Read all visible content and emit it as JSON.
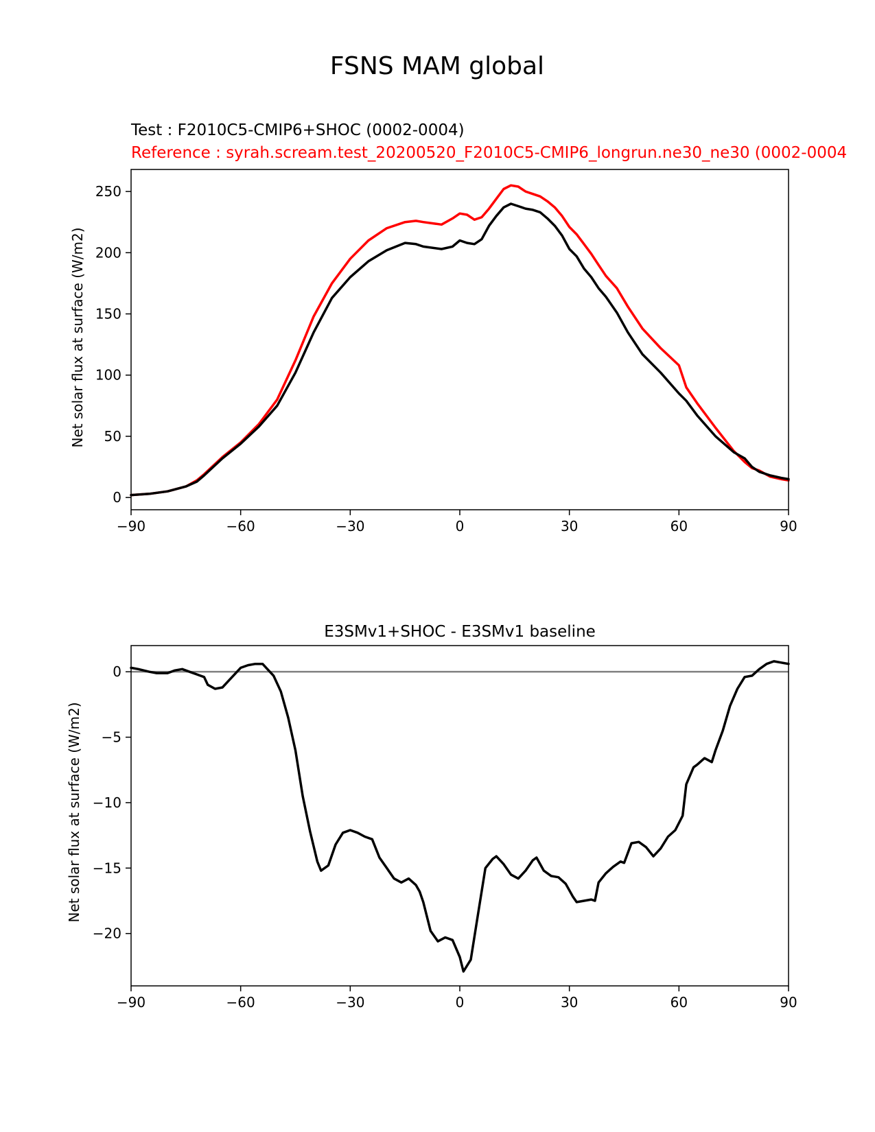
{
  "suptitle": "FSNS MAM global",
  "colors": {
    "test": "#000000",
    "reference": "#ff0000",
    "zero_line": "#808080"
  },
  "chart_data": [
    {
      "type": "line",
      "test_label": "Test : F2010C5-CMIP6+SHOC (0002-0004)",
      "reference_label": "Reference : syrah.scream.test_20200520_F2010C5-CMIP6_longrun.ne30_ne30 (0002-0004",
      "xlabel": "",
      "ylabel": "Net solar flux at surface (W/m2)",
      "xlim": [
        -90,
        90
      ],
      "ylim": [
        -10,
        268
      ],
      "xticks": [
        -90,
        -60,
        -30,
        0,
        30,
        60,
        90
      ],
      "xtick_labels": [
        "−90",
        "−60",
        "−30",
        "0",
        "30",
        "60",
        "90"
      ],
      "yticks": [
        0,
        50,
        100,
        150,
        200,
        250
      ],
      "ytick_labels": [
        "0",
        "50",
        "100",
        "150",
        "200",
        "250"
      ],
      "series": [
        {
          "name": "Reference",
          "color": "#ff0000",
          "x": [
            -90,
            -85,
            -80,
            -75,
            -72,
            -70,
            -65,
            -60,
            -55,
            -50,
            -45,
            -40,
            -35,
            -30,
            -25,
            -20,
            -15,
            -12,
            -10,
            -5,
            -2,
            0,
            2,
            4,
            6,
            8,
            10,
            12,
            14,
            16,
            18,
            20,
            22,
            24,
            26,
            28,
            30,
            32,
            34,
            36,
            38,
            40,
            43,
            46,
            50,
            55,
            60,
            62,
            65,
            70,
            75,
            78,
            80,
            82,
            85,
            88,
            90
          ],
          "values": [
            2,
            3,
            5,
            9,
            14,
            19,
            33,
            45,
            60,
            80,
            112,
            148,
            175,
            195,
            210,
            220,
            225,
            226,
            225,
            223,
            228,
            232,
            231,
            227,
            229,
            236,
            244,
            252,
            255,
            254,
            250,
            248,
            246,
            242,
            237,
            230,
            221,
            215,
            207,
            199,
            190,
            181,
            171,
            156,
            138,
            122,
            108,
            90,
            77,
            57,
            38,
            29,
            24,
            22,
            17,
            15,
            14
          ]
        },
        {
          "name": "Test",
          "color": "#000000",
          "x": [
            -90,
            -85,
            -80,
            -75,
            -72,
            -70,
            -65,
            -60,
            -55,
            -50,
            -45,
            -40,
            -35,
            -30,
            -25,
            -20,
            -15,
            -12,
            -10,
            -5,
            -2,
            0,
            2,
            4,
            6,
            8,
            10,
            12,
            14,
            16,
            18,
            20,
            22,
            24,
            26,
            28,
            30,
            32,
            34,
            36,
            38,
            40,
            43,
            46,
            50,
            55,
            60,
            62,
            65,
            70,
            75,
            78,
            80,
            82,
            85,
            88,
            90
          ],
          "values": [
            2,
            3,
            5,
            9,
            13,
            18,
            32,
            44,
            58,
            75,
            102,
            135,
            163,
            180,
            193,
            202,
            208,
            207,
            205,
            203,
            205,
            210,
            208,
            207,
            211,
            222,
            230,
            237,
            240,
            238,
            236,
            235,
            233,
            228,
            222,
            214,
            203,
            197,
            187,
            180,
            171,
            164,
            151,
            135,
            117,
            102,
            85,
            79,
            67,
            50,
            37,
            32,
            25,
            21,
            18,
            16,
            15
          ]
        }
      ]
    },
    {
      "type": "line",
      "title": "E3SMv1+SHOC - E3SMv1 baseline",
      "xlabel": "",
      "ylabel": "Net solar flux at surface (W/m2)",
      "xlim": [
        -90,
        90
      ],
      "ylim": [
        -24,
        2
      ],
      "xticks": [
        -90,
        -60,
        -30,
        0,
        30,
        60,
        90
      ],
      "xtick_labels": [
        "−90",
        "−60",
        "−30",
        "0",
        "30",
        "60",
        "90"
      ],
      "yticks": [
        0,
        -5,
        -10,
        -15,
        -20
      ],
      "ytick_labels": [
        "0",
        "−5",
        "−10",
        "−15",
        "−20"
      ],
      "reference_line": 0,
      "series": [
        {
          "name": "Difference",
          "color": "#000000",
          "x": [
            -90,
            -88,
            -85,
            -83,
            -80,
            -78,
            -76,
            -74,
            -72,
            -70,
            -69,
            -67,
            -65,
            -63,
            -60,
            -58,
            -56,
            -54,
            -53,
            -51,
            -49,
            -47,
            -45,
            -43,
            -41,
            -39,
            -38,
            -36,
            -34,
            -32,
            -30,
            -28,
            -26,
            -24,
            -22,
            -20,
            -18,
            -16,
            -14,
            -12,
            -11,
            -10,
            -8,
            -6,
            -4,
            -2,
            0,
            1,
            3,
            5,
            7,
            9,
            10,
            12,
            14,
            16,
            18,
            20,
            21,
            23,
            25,
            27,
            29,
            31,
            32,
            34,
            36,
            37,
            38,
            40,
            42,
            44,
            45,
            47,
            49,
            51,
            53,
            55,
            57,
            59,
            61,
            62,
            64,
            65,
            67,
            69,
            70,
            72,
            74,
            76,
            78,
            80,
            82,
            84,
            86,
            88,
            90
          ],
          "values": [
            0.3,
            0.2,
            0.0,
            -0.1,
            -0.1,
            0.1,
            0.2,
            0.0,
            -0.2,
            -0.4,
            -1.0,
            -1.3,
            -1.2,
            -0.6,
            0.3,
            0.5,
            0.6,
            0.6,
            0.3,
            -0.3,
            -1.5,
            -3.5,
            -6.0,
            -9.5,
            -12.2,
            -14.5,
            -15.2,
            -14.8,
            -13.2,
            -12.3,
            -12.1,
            -12.3,
            -12.6,
            -12.8,
            -14.2,
            -15.0,
            -15.8,
            -16.1,
            -15.8,
            -16.3,
            -16.8,
            -17.6,
            -19.8,
            -20.6,
            -20.3,
            -20.5,
            -21.8,
            -22.9,
            -22.0,
            -18.5,
            -15.0,
            -14.3,
            -14.1,
            -14.7,
            -15.5,
            -15.8,
            -15.2,
            -14.4,
            -14.2,
            -15.2,
            -15.6,
            -15.7,
            -16.2,
            -17.2,
            -17.6,
            -17.5,
            -17.4,
            -17.5,
            -16.1,
            -15.4,
            -14.9,
            -14.5,
            -14.6,
            -13.1,
            -13.0,
            -13.4,
            -14.1,
            -13.5,
            -12.6,
            -12.1,
            -11.0,
            -8.6,
            -7.3,
            -7.1,
            -6.6,
            -6.9,
            -6.0,
            -4.5,
            -2.6,
            -1.3,
            -0.4,
            -0.3,
            0.2,
            0.6,
            0.8,
            0.7,
            0.6
          ]
        }
      ]
    }
  ]
}
